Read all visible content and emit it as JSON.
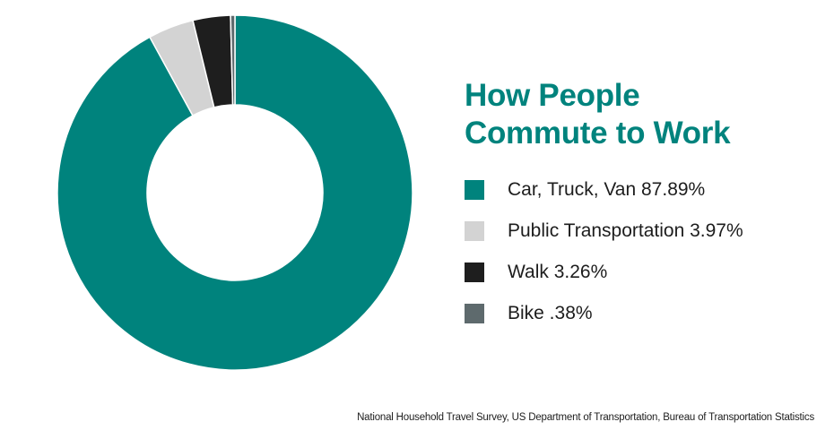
{
  "chart_data": {
    "type": "pie",
    "title_lines": [
      "How People",
      "Commute to Work"
    ],
    "series": [
      {
        "name": "Car, Truck, Van",
        "value": 87.89,
        "label": "Car, Truck, Van 87.89%",
        "color": "#00837d"
      },
      {
        "name": "Public Transportation",
        "value": 3.97,
        "label": "Public Transportation 3.97%",
        "color": "#d3d3d3"
      },
      {
        "name": "Walk",
        "value": 3.26,
        "label": "Walk 3.26%",
        "color": "#1e1e1e"
      },
      {
        "name": "Bike",
        "value": 0.38,
        "label": "Bike .38%",
        "color": "#5e6a6d"
      }
    ],
    "donut": true,
    "legend_position": "right",
    "source": "National Household Travel Survey, US Department of Transportation, Bureau of Transportation Statistics"
  }
}
